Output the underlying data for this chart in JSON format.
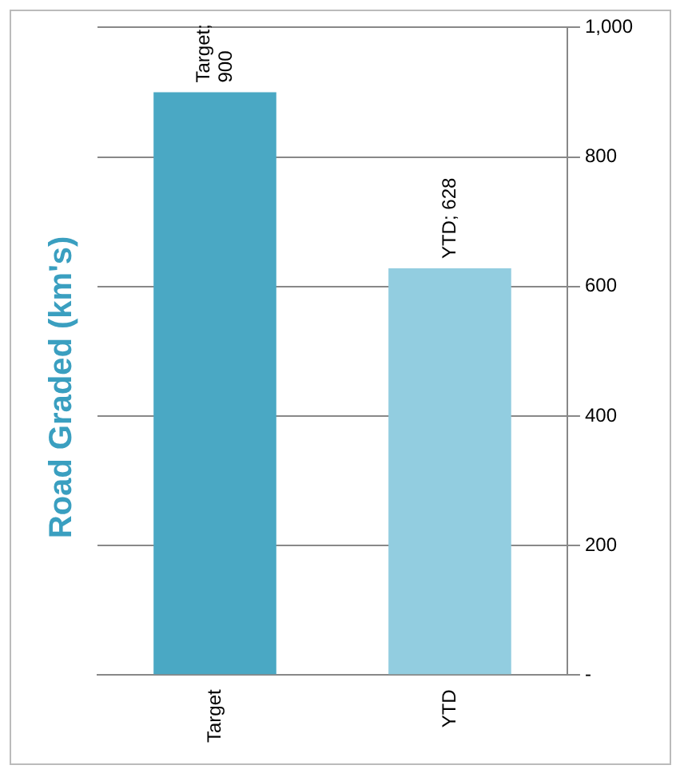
{
  "chart_data": {
    "type": "bar",
    "title": "Road Graded (km's)",
    "categories": [
      "Target",
      "YTD"
    ],
    "values": [
      900,
      628
    ],
    "colors": [
      "#4aa8c4",
      "#92cde0"
    ],
    "value_labels": [
      "Target; 900",
      "YTD; 628"
    ],
    "ylim": [
      0,
      1000
    ],
    "yticks": [
      {
        "value": 0,
        "label": "-"
      },
      200,
      400,
      600,
      800,
      {
        "value": 1000,
        "label": "1,000"
      }
    ],
    "grid": "y",
    "legend": false
  }
}
